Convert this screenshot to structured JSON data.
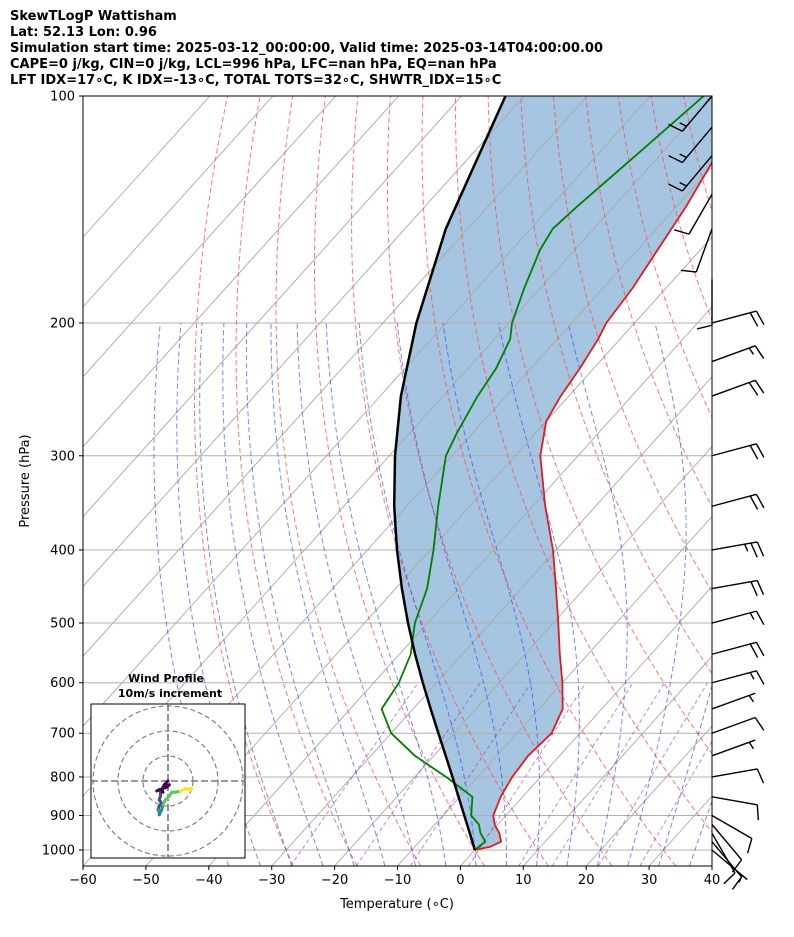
{
  "header": {
    "line1": "SkewTLogP Wattisham",
    "line2": "Lat: 52.13   Lon: 0.96",
    "line3": "Simulation start time: 2025-03-12_00:00:00, Valid time: 2025-03-14T04:00:00.00",
    "line4": "CAPE=0 j/kg, CIN=0 j/kg, LCL=996 hPa, LFC=nan hPa, EQ=nan hPa",
    "line5": "LFT IDX=17∘C, K IDX=-13∘C, TOTAL TOTS=32∘C, SHWTR_IDX=15∘C"
  },
  "chart_data": {
    "type": "line",
    "subtype": "skew-T log-P",
    "xlabel": "Temperature (∘C)",
    "ylabel": "Pressure (hPa)",
    "xlim": [
      -60,
      40
    ],
    "ylim": [
      1050,
      100
    ],
    "y_scale": "log",
    "x_ticks": [
      "−60",
      "−50",
      "−40",
      "−30",
      "−20",
      "−10",
      "0",
      "10",
      "20",
      "30",
      "40"
    ],
    "y_ticks": [
      "1000",
      "900",
      "800",
      "700",
      "600",
      "500",
      "400",
      "300",
      "200",
      "100"
    ],
    "grid": true,
    "dry_adiabats_color": "#ff4a4a",
    "moist_adiabats_color": "#3344ff",
    "mixing_ratio_color": "#9933cc",
    "series": [
      {
        "key": "temperature",
        "color": "#e31a1c",
        "points": [
          [
            1000,
            0
          ],
          [
            990,
            2.0
          ],
          [
            975,
            3.0
          ],
          [
            950,
            1.5
          ],
          [
            925,
            -0.5
          ],
          [
            900,
            -2.0
          ],
          [
            850,
            -3.5
          ],
          [
            800,
            -4.5
          ],
          [
            750,
            -5.0
          ],
          [
            700,
            -4.5
          ],
          [
            650,
            -6.2
          ],
          [
            600,
            -10.0
          ],
          [
            550,
            -14.5
          ],
          [
            500,
            -19.2
          ],
          [
            450,
            -24.5
          ],
          [
            400,
            -30.5
          ],
          [
            350,
            -38.0
          ],
          [
            300,
            -46.0
          ],
          [
            270,
            -50.0
          ],
          [
            250,
            -51.3
          ],
          [
            230,
            -52.2
          ],
          [
            210,
            -53.5
          ],
          [
            200,
            -54.5
          ],
          [
            180,
            -55.3
          ],
          [
            160,
            -56.8
          ],
          [
            140,
            -58.5
          ],
          [
            120,
            -61.0
          ],
          [
            110,
            -62.5
          ],
          [
            100,
            -64.5
          ]
        ]
      },
      {
        "key": "dewpoint",
        "color": "#008000",
        "points": [
          [
            1000,
            0
          ],
          [
            975,
            0.5
          ],
          [
            950,
            -1.5
          ],
          [
            925,
            -3.0
          ],
          [
            900,
            -5.5
          ],
          [
            850,
            -8.0
          ],
          [
            800,
            -15.0
          ],
          [
            750,
            -23.0
          ],
          [
            700,
            -30.0
          ],
          [
            650,
            -35.0
          ],
          [
            600,
            -36.0
          ],
          [
            550,
            -38.2
          ],
          [
            500,
            -42.0
          ],
          [
            450,
            -45.0
          ],
          [
            400,
            -49.5
          ],
          [
            350,
            -55.0
          ],
          [
            300,
            -61.0
          ],
          [
            280,
            -62.5
          ],
          [
            250,
            -64.5
          ],
          [
            230,
            -65.5
          ],
          [
            210,
            -67.5
          ],
          [
            200,
            -69.5
          ],
          [
            180,
            -72.5
          ],
          [
            160,
            -75.5
          ],
          [
            150,
            -76.5
          ],
          [
            140,
            -75.8
          ],
          [
            120,
            -73.8
          ],
          [
            100,
            -71.5
          ]
        ]
      },
      {
        "key": "parcel",
        "color": "#000000",
        "points": [
          [
            1000,
            0
          ],
          [
            950,
            -3.2
          ],
          [
            900,
            -6.6
          ],
          [
            850,
            -10.2
          ],
          [
            800,
            -14.0
          ],
          [
            750,
            -18.1
          ],
          [
            700,
            -22.5
          ],
          [
            650,
            -27.2
          ],
          [
            600,
            -32.2
          ],
          [
            550,
            -37.5
          ],
          [
            500,
            -43.1
          ],
          [
            450,
            -49.0
          ],
          [
            400,
            -55.3
          ],
          [
            350,
            -62.0
          ],
          [
            300,
            -69.1
          ],
          [
            250,
            -76.7
          ],
          [
            200,
            -84.7
          ],
          [
            150,
            -93.5
          ],
          [
            100,
            -103.0
          ]
        ]
      }
    ],
    "wind_barbs": [
      {
        "p": 1000,
        "speed_kt": 5,
        "dir": 310
      },
      {
        "p": 975,
        "speed_kt": 10,
        "dir": 320
      },
      {
        "p": 950,
        "speed_kt": 10,
        "dir": 330
      },
      {
        "p": 925,
        "speed_kt": 10,
        "dir": 320
      },
      {
        "p": 900,
        "speed_kt": 10,
        "dir": 300
      },
      {
        "p": 850,
        "speed_kt": 10,
        "dir": 280
      },
      {
        "p": 800,
        "speed_kt": 10,
        "dir": 260
      },
      {
        "p": 750,
        "speed_kt": 5,
        "dir": 250
      },
      {
        "p": 700,
        "speed_kt": 10,
        "dir": 250
      },
      {
        "p": 650,
        "speed_kt": 5,
        "dir": 250
      },
      {
        "p": 600,
        "speed_kt": 15,
        "dir": 255
      },
      {
        "p": 550,
        "speed_kt": 20,
        "dir": 255
      },
      {
        "p": 500,
        "speed_kt": 15,
        "dir": 255
      },
      {
        "p": 450,
        "speed_kt": 20,
        "dir": 260
      },
      {
        "p": 400,
        "speed_kt": 25,
        "dir": 260
      },
      {
        "p": 350,
        "speed_kt": 20,
        "dir": 255
      },
      {
        "p": 300,
        "speed_kt": 20,
        "dir": 255
      },
      {
        "p": 250,
        "speed_kt": 20,
        "dir": 250
      },
      {
        "p": 225,
        "speed_kt": 15,
        "dir": 250
      },
      {
        "p": 200,
        "speed_kt": 20,
        "dir": 255
      },
      {
        "p": 175,
        "speed_kt": 10,
        "dir": 0
      },
      {
        "p": 150,
        "speed_kt": 10,
        "dir": 20
      },
      {
        "p": 135,
        "speed_kt": 10,
        "dir": 30
      },
      {
        "p": 120,
        "speed_kt": 15,
        "dir": 40
      },
      {
        "p": 110,
        "speed_kt": 15,
        "dir": 40
      },
      {
        "p": 100,
        "speed_kt": 15,
        "dir": 40
      }
    ],
    "inset": {
      "title": "Wind Profile",
      "subtitle": "10m/s increment",
      "rings_ms": [
        10,
        20,
        30
      ],
      "hodograph": [
        [
          0,
          0
        ],
        [
          -0.5,
          -0.5
        ],
        [
          -1.5,
          -1.5
        ],
        [
          -2,
          -3
        ],
        [
          -3,
          -4.5
        ],
        [
          -3,
          -6
        ],
        [
          -3.5,
          -7.5
        ],
        [
          -2.5,
          -9
        ],
        [
          -3.5,
          -10
        ],
        [
          -4,
          -11.5
        ],
        [
          -3.5,
          -12.5
        ],
        [
          -3.5,
          -13.5
        ],
        [
          -2.5,
          -11.5
        ],
        [
          -2,
          -9.5
        ],
        [
          -1,
          -7.5
        ],
        [
          0.5,
          -6
        ],
        [
          1.5,
          -4.5
        ],
        [
          3,
          -4.5
        ],
        [
          5,
          -4
        ],
        [
          7,
          -3
        ],
        [
          9,
          -3.5
        ],
        [
          9.5,
          -3
        ],
        [
          7.5,
          -3.5
        ]
      ],
      "top_segment": [
        [
          -4.5,
          -4
        ],
        [
          -3.5,
          -3.5
        ],
        [
          -2,
          -3
        ],
        [
          -0.5,
          -2.5
        ],
        [
          0,
          -2
        ],
        [
          0.5,
          -1.5
        ],
        [
          -1,
          -2
        ],
        [
          -2,
          -2.5
        ],
        [
          -2.5,
          -3.5
        ],
        [
          -2,
          -4.5
        ]
      ],
      "color_stops": [
        "#440154",
        "#3b528b",
        "#21908d",
        "#5dc863",
        "#fde725"
      ]
    }
  }
}
